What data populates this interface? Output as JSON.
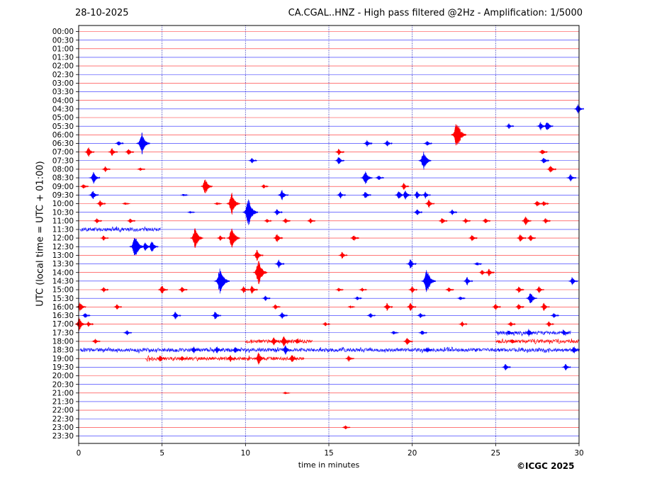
{
  "header": {
    "date": "28-10-2025",
    "title": "CA.CGAL..HNZ - High pass filtered @2Hz - Amplification: 1/5000"
  },
  "credit": "©ICGC 2025",
  "colors": {
    "red": "#ff0000",
    "blue": "#0000ff",
    "grid": "#0000aa"
  },
  "chart_data": {
    "type": "seismogram",
    "xlabel": "time in minutes",
    "ylabel": "UTC (local time = UTC + 01:00)",
    "xlim": [
      0,
      30
    ],
    "x_ticks": [
      0,
      5,
      10,
      15,
      20,
      25,
      30
    ],
    "y_ticks": [
      "00:00",
      "00:30",
      "01:00",
      "01:30",
      "02:00",
      "02:30",
      "03:00",
      "03:30",
      "04:00",
      "04:30",
      "05:00",
      "05:30",
      "06:00",
      "06:30",
      "07:00",
      "07:30",
      "08:00",
      "08:30",
      "09:00",
      "09:30",
      "10:00",
      "10:30",
      "11:00",
      "11:30",
      "12:00",
      "12:30",
      "13:00",
      "13:30",
      "14:00",
      "14:30",
      "15:00",
      "15:30",
      "16:00",
      "16:30",
      "17:00",
      "17:30",
      "18:00",
      "18:30",
      "19:00",
      "19:30",
      "20:00",
      "20:30",
      "21:00",
      "21:30",
      "22:00",
      "22:30",
      "23:00",
      "23:30"
    ],
    "trace_colors": [
      "#ff0000",
      "#0000ff"
    ],
    "grid": "vertical dotted lines every 5 minutes",
    "events": [
      {
        "row": "04:30",
        "t": 29.95,
        "a": 7
      },
      {
        "row": "05:30",
        "t": 25.8,
        "a": 4
      },
      {
        "row": "05:30",
        "t": 27.7,
        "a": 6
      },
      {
        "row": "05:30",
        "t": 28.1,
        "a": 8
      },
      {
        "row": "06:00",
        "t": 22.7,
        "a": 22
      },
      {
        "row": "06:30",
        "t": 2.4,
        "a": 4
      },
      {
        "row": "06:30",
        "t": 3.8,
        "a": 16
      },
      {
        "row": "06:30",
        "t": 17.3,
        "a": 5
      },
      {
        "row": "06:30",
        "t": 18.5,
        "a": 5
      },
      {
        "row": "06:30",
        "t": 20.9,
        "a": 4
      },
      {
        "row": "07:00",
        "t": 0.6,
        "a": 7
      },
      {
        "row": "07:00",
        "t": 2.0,
        "a": 6
      },
      {
        "row": "07:00",
        "t": 3.0,
        "a": 5
      },
      {
        "row": "07:00",
        "t": 15.6,
        "a": 5
      },
      {
        "row": "07:00",
        "t": 27.8,
        "a": 5
      },
      {
        "row": "07:30",
        "t": 10.4,
        "a": 4
      },
      {
        "row": "07:30",
        "t": 15.6,
        "a": 6
      },
      {
        "row": "07:30",
        "t": 20.7,
        "a": 14
      },
      {
        "row": "07:30",
        "t": 27.9,
        "a": 5
      },
      {
        "row": "08:00",
        "t": 1.6,
        "a": 4
      },
      {
        "row": "08:00",
        "t": 3.7,
        "a": 3
      },
      {
        "row": "08:00",
        "t": 28.3,
        "a": 6
      },
      {
        "row": "08:30",
        "t": 0.9,
        "a": 9
      },
      {
        "row": "08:30",
        "t": 17.2,
        "a": 12
      },
      {
        "row": "08:30",
        "t": 18.0,
        "a": 4
      },
      {
        "row": "08:30",
        "t": 29.5,
        "a": 6
      },
      {
        "row": "09:00",
        "t": 0.3,
        "a": 4
      },
      {
        "row": "09:00",
        "t": 7.6,
        "a": 12
      },
      {
        "row": "09:00",
        "t": 11.1,
        "a": 3
      },
      {
        "row": "09:00",
        "t": 19.5,
        "a": 5
      },
      {
        "row": "09:30",
        "t": 0.85,
        "a": 7
      },
      {
        "row": "09:30",
        "t": 6.3,
        "a": 2
      },
      {
        "row": "09:30",
        "t": 12.2,
        "a": 8
      },
      {
        "row": "09:30",
        "t": 15.7,
        "a": 5
      },
      {
        "row": "09:30",
        "t": 17.2,
        "a": 6
      },
      {
        "row": "09:30",
        "t": 19.2,
        "a": 7
      },
      {
        "row": "09:30",
        "t": 19.6,
        "a": 7
      },
      {
        "row": "09:30",
        "t": 20.3,
        "a": 6
      },
      {
        "row": "09:30",
        "t": 20.8,
        "a": 5
      },
      {
        "row": "10:00",
        "t": 1.3,
        "a": 5
      },
      {
        "row": "10:00",
        "t": 2.8,
        "a": 2
      },
      {
        "row": "10:00",
        "t": 8.3,
        "a": 2
      },
      {
        "row": "10:00",
        "t": 9.2,
        "a": 16
      },
      {
        "row": "10:00",
        "t": 21.0,
        "a": 6
      },
      {
        "row": "10:00",
        "t": 27.5,
        "a": 5
      },
      {
        "row": "10:00",
        "t": 27.9,
        "a": 4
      },
      {
        "row": "10:30",
        "t": 6.7,
        "a": 2
      },
      {
        "row": "10:30",
        "t": 10.2,
        "a": 20
      },
      {
        "row": "10:30",
        "t": 11.9,
        "a": 5
      },
      {
        "row": "10:30",
        "t": 20.3,
        "a": 5
      },
      {
        "row": "10:30",
        "t": 22.4,
        "a": 4
      },
      {
        "row": "11:00",
        "t": 1.1,
        "a": 4
      },
      {
        "row": "11:00",
        "t": 3.1,
        "a": 4
      },
      {
        "row": "11:00",
        "t": 11.3,
        "a": 3
      },
      {
        "row": "11:00",
        "t": 12.4,
        "a": 4
      },
      {
        "row": "11:00",
        "t": 13.9,
        "a": 4
      },
      {
        "row": "11:00",
        "t": 21.8,
        "a": 5
      },
      {
        "row": "11:00",
        "t": 23.2,
        "a": 4
      },
      {
        "row": "11:00",
        "t": 24.4,
        "a": 4
      },
      {
        "row": "11:00",
        "t": 26.8,
        "a": 7
      },
      {
        "row": "11:00",
        "t": 28.0,
        "a": 4
      },
      {
        "row": "12:00",
        "t": 1.5,
        "a": 4
      },
      {
        "row": "12:00",
        "t": 7.0,
        "a": 15
      },
      {
        "row": "12:00",
        "t": 8.5,
        "a": 4
      },
      {
        "row": "12:00",
        "t": 9.2,
        "a": 16
      },
      {
        "row": "12:00",
        "t": 11.9,
        "a": 7
      },
      {
        "row": "12:00",
        "t": 16.5,
        "a": 5
      },
      {
        "row": "12:00",
        "t": 23.6,
        "a": 5
      },
      {
        "row": "12:00",
        "t": 26.5,
        "a": 6
      },
      {
        "row": "12:00",
        "t": 27.1,
        "a": 5
      },
      {
        "row": "12:30",
        "t": 3.4,
        "a": 18
      },
      {
        "row": "12:30",
        "t": 4.0,
        "a": 7
      },
      {
        "row": "12:30",
        "t": 4.4,
        "a": 9
      },
      {
        "row": "13:00",
        "t": 10.7,
        "a": 8
      },
      {
        "row": "13:00",
        "t": 15.8,
        "a": 5
      },
      {
        "row": "13:30",
        "t": 12.0,
        "a": 6
      },
      {
        "row": "13:30",
        "t": 19.9,
        "a": 7
      },
      {
        "row": "13:30",
        "t": 23.9,
        "a": 3
      },
      {
        "row": "14:00",
        "t": 10.8,
        "a": 18
      },
      {
        "row": "14:00",
        "t": 24.2,
        "a": 4
      },
      {
        "row": "14:00",
        "t": 24.6,
        "a": 6
      },
      {
        "row": "14:30",
        "t": 8.5,
        "a": 20
      },
      {
        "row": "14:30",
        "t": 20.9,
        "a": 18
      },
      {
        "row": "14:30",
        "t": 23.3,
        "a": 6
      },
      {
        "row": "14:30",
        "t": 29.6,
        "a": 6
      },
      {
        "row": "15:00",
        "t": 1.5,
        "a": 4
      },
      {
        "row": "15:00",
        "t": 5.0,
        "a": 7
      },
      {
        "row": "15:00",
        "t": 6.2,
        "a": 5
      },
      {
        "row": "15:00",
        "t": 9.9,
        "a": 5
      },
      {
        "row": "15:00",
        "t": 10.4,
        "a": 6
      },
      {
        "row": "15:00",
        "t": 15.6,
        "a": 3
      },
      {
        "row": "15:00",
        "t": 17.0,
        "a": 3
      },
      {
        "row": "15:00",
        "t": 20.0,
        "a": 5
      },
      {
        "row": "15:00",
        "t": 22.2,
        "a": 4
      },
      {
        "row": "15:00",
        "t": 26.4,
        "a": 5
      },
      {
        "row": "15:00",
        "t": 27.6,
        "a": 5
      },
      {
        "row": "15:30",
        "t": 11.2,
        "a": 4
      },
      {
        "row": "15:30",
        "t": 16.7,
        "a": 3
      },
      {
        "row": "15:30",
        "t": 22.9,
        "a": 3
      },
      {
        "row": "15:30",
        "t": 27.1,
        "a": 10
      },
      {
        "row": "16:00",
        "t": 0.1,
        "a": 7
      },
      {
        "row": "16:00",
        "t": 2.3,
        "a": 4
      },
      {
        "row": "16:00",
        "t": 11.8,
        "a": 4
      },
      {
        "row": "16:00",
        "t": 16.3,
        "a": 2
      },
      {
        "row": "16:00",
        "t": 18.5,
        "a": 6
      },
      {
        "row": "16:00",
        "t": 19.9,
        "a": 6
      },
      {
        "row": "16:00",
        "t": 25.0,
        "a": 5
      },
      {
        "row": "16:00",
        "t": 26.4,
        "a": 5
      },
      {
        "row": "16:00",
        "t": 27.9,
        "a": 6
      },
      {
        "row": "16:30",
        "t": 0.4,
        "a": 4
      },
      {
        "row": "16:30",
        "t": 5.8,
        "a": 6
      },
      {
        "row": "16:30",
        "t": 8.2,
        "a": 7
      },
      {
        "row": "16:30",
        "t": 12.2,
        "a": 5
      },
      {
        "row": "16:30",
        "t": 17.5,
        "a": 4
      },
      {
        "row": "16:30",
        "t": 20.5,
        "a": 4
      },
      {
        "row": "16:30",
        "t": 28.5,
        "a": 4
      },
      {
        "row": "17:00",
        "t": 0.05,
        "a": 10
      },
      {
        "row": "17:00",
        "t": 0.6,
        "a": 4
      },
      {
        "row": "17:00",
        "t": 14.8,
        "a": 3
      },
      {
        "row": "17:00",
        "t": 23.0,
        "a": 4
      },
      {
        "row": "17:00",
        "t": 25.9,
        "a": 4
      },
      {
        "row": "17:00",
        "t": 28.2,
        "a": 4
      },
      {
        "row": "17:30",
        "t": 2.9,
        "a": 4
      },
      {
        "row": "17:30",
        "t": 18.9,
        "a": 3
      },
      {
        "row": "17:30",
        "t": 20.6,
        "a": 4
      },
      {
        "row": "17:30",
        "t": 25.8,
        "a": 4
      },
      {
        "row": "17:30",
        "t": 27.0,
        "a": 6
      },
      {
        "row": "17:30",
        "t": 29.1,
        "a": 4
      },
      {
        "row": "18:00",
        "t": 1.0,
        "a": 4
      },
      {
        "row": "18:00",
        "t": 11.7,
        "a": 6
      },
      {
        "row": "18:00",
        "t": 12.3,
        "a": 8
      },
      {
        "row": "18:00",
        "t": 13.1,
        "a": 4
      },
      {
        "row": "18:00",
        "t": 19.7,
        "a": 6
      },
      {
        "row": "18:00",
        "t": 26.0,
        "a": 4
      },
      {
        "row": "18:30",
        "t": 6.9,
        "a": 5
      },
      {
        "row": "18:30",
        "t": 8.3,
        "a": 5
      },
      {
        "row": "18:30",
        "t": 9.4,
        "a": 5
      },
      {
        "row": "18:30",
        "t": 12.4,
        "a": 7
      },
      {
        "row": "18:30",
        "t": 20.9,
        "a": 4
      },
      {
        "row": "18:30",
        "t": 29.7,
        "a": 6
      },
      {
        "row": "19:00",
        "t": 4.9,
        "a": 5
      },
      {
        "row": "19:00",
        "t": 6.2,
        "a": 4
      },
      {
        "row": "19:00",
        "t": 9.1,
        "a": 5
      },
      {
        "row": "19:00",
        "t": 10.8,
        "a": 9
      },
      {
        "row": "19:00",
        "t": 12.8,
        "a": 6
      },
      {
        "row": "19:00",
        "t": 16.2,
        "a": 5
      },
      {
        "row": "19:30",
        "t": 25.6,
        "a": 5
      },
      {
        "row": "19:30",
        "t": 29.2,
        "a": 5
      },
      {
        "row": "21:00",
        "t": 12.4,
        "a": 2
      },
      {
        "row": "23:00",
        "t": 16.0,
        "a": 3
      }
    ],
    "noise_bands": [
      {
        "row": "11:30",
        "t0": 0.1,
        "t1": 4.9,
        "a": 2
      },
      {
        "row": "17:30",
        "t0": 25.0,
        "t1": 29.5,
        "a": 2
      },
      {
        "row": "18:00",
        "t0": 10.0,
        "t1": 14.0,
        "a": 2
      },
      {
        "row": "18:00",
        "t0": 25.0,
        "t1": 30.0,
        "a": 2
      },
      {
        "row": "18:30",
        "t0": 0.1,
        "t1": 30.0,
        "a": 2
      },
      {
        "row": "19:00",
        "t0": 4.0,
        "t1": 13.5,
        "a": 2
      }
    ]
  }
}
